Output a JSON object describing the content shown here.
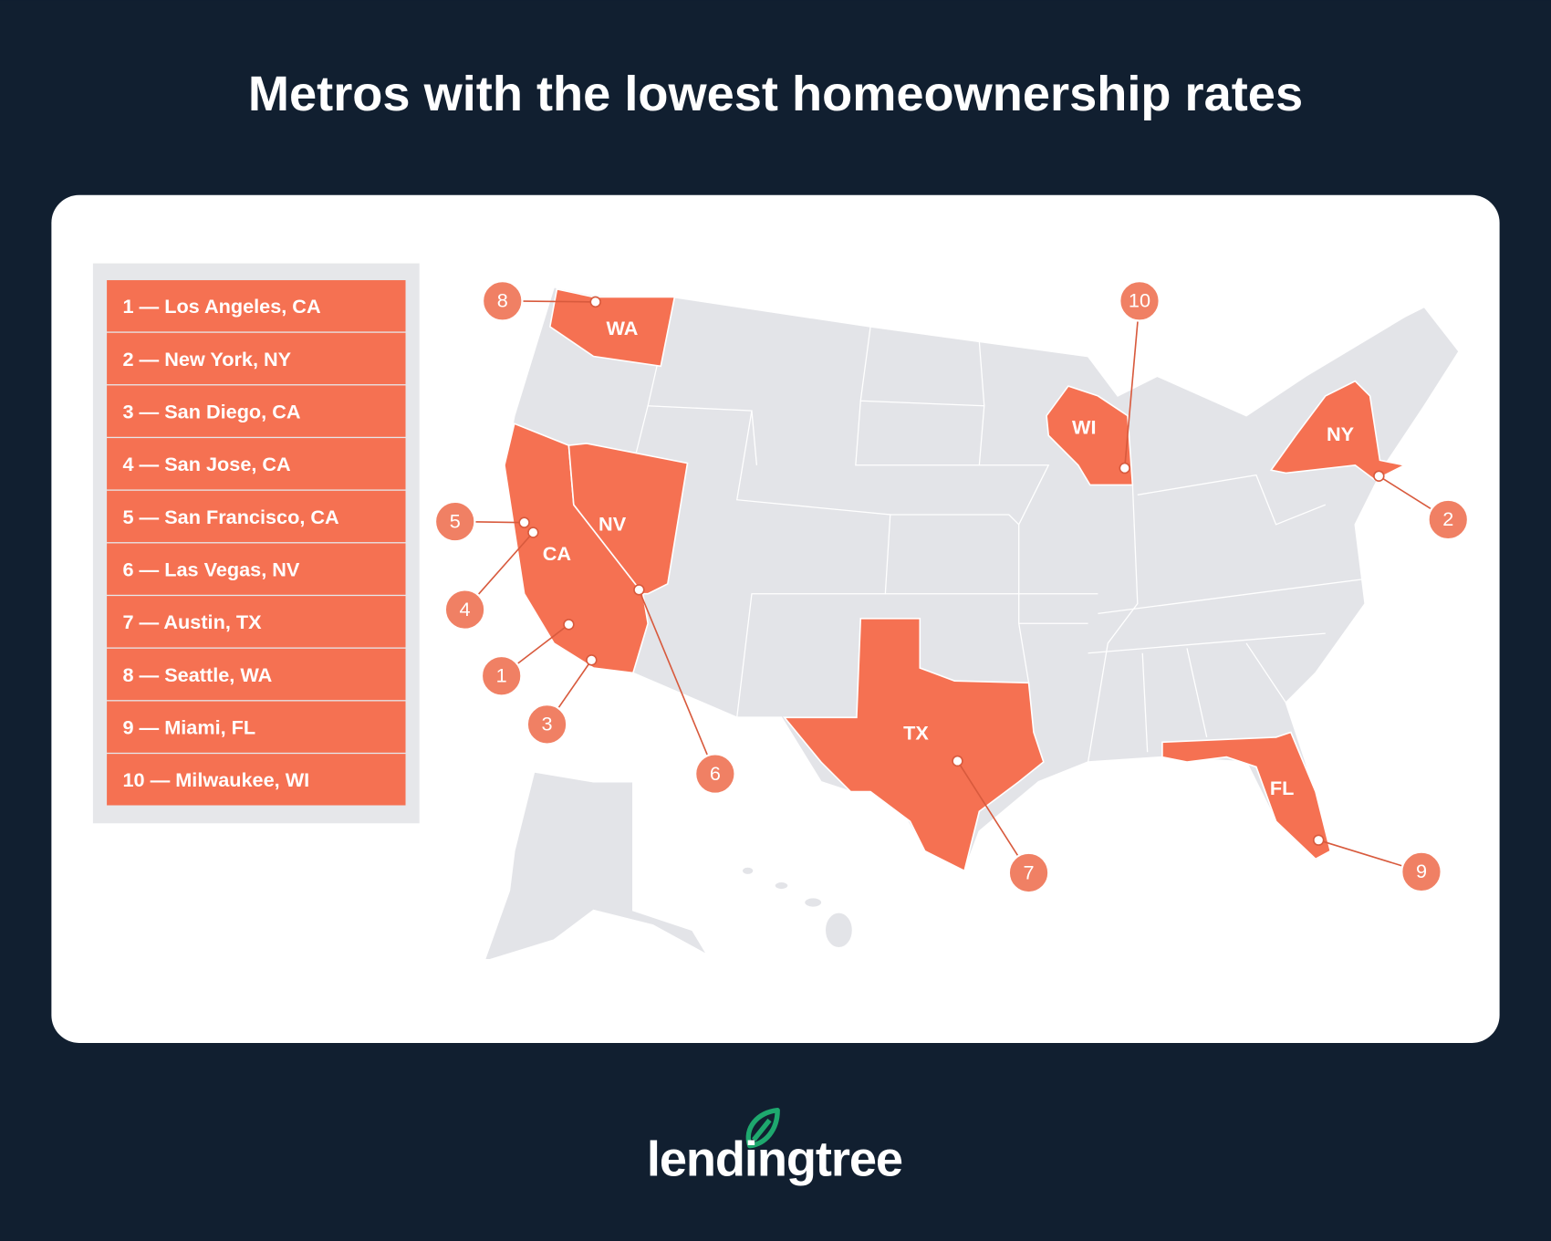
{
  "title": "Metros with the lowest homeownership rates",
  "list": [
    "1 — Los Angeles, CA",
    "2 — New York, NY",
    "3 — San Diego, CA",
    "4 — San Jose, CA",
    "5 — San Francisco, CA",
    "6 — Las Vegas, NV",
    "7 — Austin, TX",
    "8 — Seattle, WA",
    "9 — Miami, FL",
    "10 — Milwaukee, WI"
  ],
  "states": [
    "WA",
    "CA",
    "NV",
    "TX",
    "WI",
    "NY",
    "FL"
  ],
  "markers": [
    8,
    10,
    5,
    4,
    1,
    3,
    6,
    2,
    7,
    9
  ],
  "logo": "lendingtree"
}
